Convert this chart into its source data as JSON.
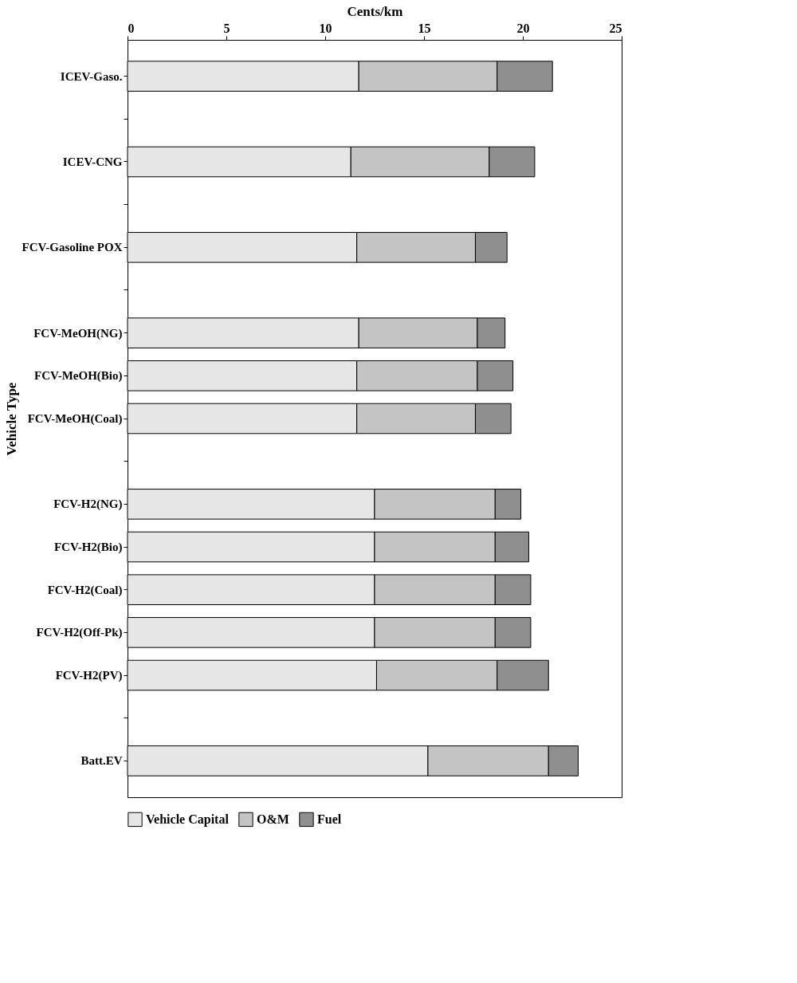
{
  "chart_data": {
    "type": "bar",
    "orientation": "horizontal",
    "stacked": true,
    "xlabel": "Cents/km",
    "ylabel": "Vehicle Type",
    "categories": [
      "ICEV-Gaso.",
      null,
      "ICEV-CNG",
      null,
      "FCV-Gasoline POX",
      null,
      "FCV-MeOH(NG)",
      "FCV-MeOH(Bio)",
      "FCV-MeOH(Coal)",
      null,
      "FCV-H2(NG)",
      "FCV-H2(Bio)",
      "FCV-H2(Coal)",
      "FCV-H2(Off-Pk)",
      "FCV-H2(PV)",
      null,
      "Batt.EV"
    ],
    "series": [
      {
        "name": "Vehicle Capital",
        "color": "#e6e6e6",
        "values": [
          11.7,
          null,
          11.3,
          null,
          11.6,
          null,
          11.7,
          11.6,
          11.6,
          null,
          12.5,
          12.5,
          12.5,
          12.5,
          12.6,
          null,
          15.2
        ]
      },
      {
        "name": "O&M",
        "color": "#c4c4c4",
        "values": [
          7.0,
          null,
          7.0,
          null,
          6.0,
          null,
          6.0,
          6.1,
          6.0,
          null,
          6.1,
          6.1,
          6.1,
          6.1,
          6.1,
          null,
          6.1
        ]
      },
      {
        "name": "Fuel",
        "color": "#8f8f8f",
        "values": [
          2.8,
          null,
          2.3,
          null,
          1.6,
          null,
          1.4,
          1.8,
          1.8,
          null,
          1.3,
          1.7,
          1.8,
          1.8,
          2.6,
          null,
          1.5
        ]
      }
    ],
    "xlim": [
      0,
      25
    ],
    "xticks": [
      0,
      5,
      10,
      15,
      20,
      25
    ],
    "grid": false,
    "legend": "bottom"
  }
}
